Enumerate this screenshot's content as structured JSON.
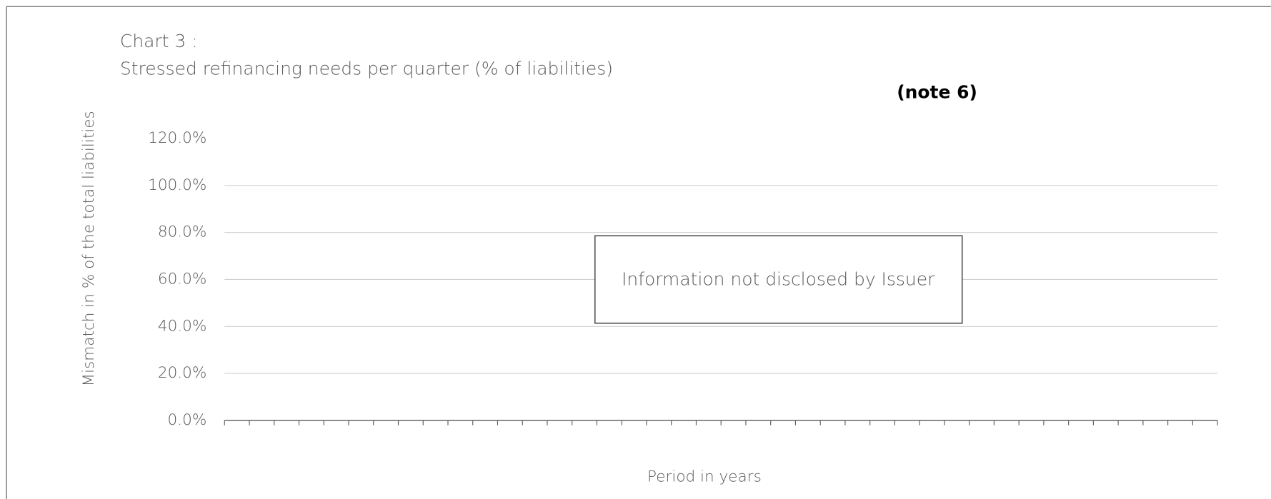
{
  "chart_data": {
    "type": "bar",
    "title": [
      "Chart 3 :",
      "Stressed refinancing needs per quarter  (% of liabilities)"
    ],
    "annotations": [
      "(note 6)",
      "Information not disclosed by Issuer"
    ],
    "x_label": "Period in years",
    "y_label": "Mismatch in % of the total liabilities",
    "categories": [
      null,
      null,
      null,
      null,
      null,
      null,
      null,
      null,
      null,
      null,
      null,
      null,
      null,
      null,
      null,
      null,
      null,
      null,
      null,
      null,
      null,
      null,
      null,
      null,
      null,
      null,
      null,
      null,
      null,
      null,
      null,
      null,
      null,
      null,
      null,
      null,
      null,
      null,
      null,
      null,
      null
    ],
    "ylim": [
      0,
      120
    ],
    "yticks": [
      {
        "value": 0,
        "label": "0.0%"
      },
      {
        "value": 20,
        "label": "20.0%"
      },
      {
        "value": 40,
        "label": "40.0%"
      },
      {
        "value": 60,
        "label": "60.0%"
      },
      {
        "value": 80,
        "label": "80.0%"
      },
      {
        "value": 100,
        "label": "100.0%"
      },
      {
        "value": 120,
        "label": "120.0%"
      }
    ],
    "grid": true
  }
}
